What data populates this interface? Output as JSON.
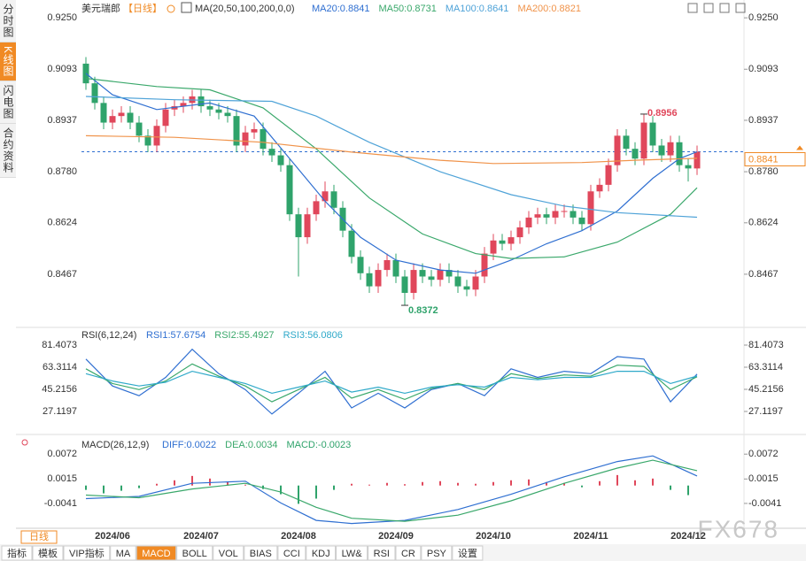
{
  "ui": {
    "sidebar": [
      "分时图",
      "K线图",
      "闪电图",
      "合约资料"
    ],
    "period_button": "日线",
    "toolbar": [
      "指标",
      "模板",
      "VIP指标",
      "MA",
      "MACD",
      "BOLL",
      "VOL",
      "BIAS",
      "CCI",
      "KDJ",
      "LW&",
      "RSI",
      "CR",
      "PSY",
      "设置"
    ],
    "watermark": "FX678"
  },
  "chart_data": [
    {
      "type": "candlestick",
      "title": "美元瑞郎",
      "subtitle": "【日线】",
      "legend_title": "MA(20,50,100,200,0,0)",
      "categories": [
        null,
        null,
        null,
        "2024/06",
        null,
        null,
        null,
        null,
        null,
        null,
        null,
        null,
        null,
        "2024/07",
        null,
        null,
        null,
        null,
        null,
        null,
        null,
        null,
        null,
        null,
        "2024/08",
        null,
        null,
        null,
        null,
        null,
        null,
        null,
        null,
        null,
        null,
        "2024/09",
        null,
        null,
        null,
        null,
        null,
        null,
        null,
        null,
        null,
        null,
        "2024/10",
        null,
        null,
        null,
        null,
        null,
        null,
        null,
        null,
        null,
        null,
        "2024/11",
        null,
        null,
        null,
        null,
        null,
        null,
        null,
        null,
        null,
        null,
        "2024/12",
        null
      ],
      "open": [
        0.911,
        0.905,
        0.899,
        0.893,
        0.895,
        0.896,
        0.893,
        0.889,
        0.886,
        0.892,
        0.897,
        0.898,
        0.899,
        0.901,
        0.898,
        0.897,
        0.896,
        0.895,
        0.886,
        0.89,
        0.891,
        0.885,
        0.883,
        0.88,
        0.865,
        0.858,
        0.865,
        0.869,
        0.872,
        0.867,
        0.86,
        0.852,
        0.847,
        0.843,
        0.848,
        0.851,
        0.846,
        0.841,
        0.848,
        0.846,
        0.845,
        0.848,
        0.846,
        0.843,
        0.842,
        0.846,
        0.853,
        0.857,
        0.856,
        0.858,
        0.861,
        0.864,
        0.865,
        0.864,
        0.866,
        0.866,
        0.864,
        0.862,
        0.872,
        0.874,
        0.88,
        0.889,
        0.885,
        0.882,
        0.893,
        0.886,
        0.883,
        0.887,
        0.88,
        0.879
      ],
      "high": [
        0.913,
        0.907,
        0.901,
        0.897,
        0.898,
        0.898,
        0.895,
        0.891,
        0.894,
        0.899,
        0.9,
        0.901,
        0.903,
        0.903,
        0.9,
        0.899,
        0.898,
        0.897,
        0.892,
        0.893,
        0.893,
        0.887,
        0.885,
        0.882,
        0.867,
        0.867,
        0.871,
        0.875,
        0.874,
        0.869,
        0.862,
        0.854,
        0.849,
        0.85,
        0.853,
        0.853,
        0.848,
        0.85,
        0.85,
        0.848,
        0.85,
        0.85,
        0.848,
        0.845,
        0.848,
        0.855,
        0.859,
        0.859,
        0.86,
        0.863,
        0.866,
        0.867,
        0.867,
        0.868,
        0.868,
        0.868,
        0.866,
        0.874,
        0.876,
        0.882,
        0.891,
        0.891,
        0.887,
        0.8956,
        0.895,
        0.888,
        0.889,
        0.889,
        0.882,
        0.886
      ],
      "low": [
        0.903,
        0.897,
        0.891,
        0.891,
        0.893,
        0.891,
        0.887,
        0.884,
        0.884,
        0.89,
        0.895,
        0.896,
        0.897,
        0.896,
        0.895,
        0.894,
        0.893,
        0.884,
        0.884,
        0.888,
        0.883,
        0.881,
        0.878,
        0.863,
        0.846,
        0.856,
        0.863,
        0.867,
        0.865,
        0.858,
        0.85,
        0.845,
        0.841,
        0.841,
        0.846,
        0.844,
        0.8372,
        0.839,
        0.844,
        0.843,
        0.843,
        0.844,
        0.841,
        0.84,
        0.84,
        0.844,
        0.851,
        0.854,
        0.854,
        0.856,
        0.859,
        0.862,
        0.862,
        0.862,
        0.864,
        0.862,
        0.86,
        0.86,
        0.87,
        0.872,
        0.878,
        0.883,
        0.88,
        0.88,
        0.884,
        0.881,
        0.881,
        0.878,
        0.875,
        0.877
      ],
      "close": [
        0.905,
        0.899,
        0.893,
        0.895,
        0.896,
        0.893,
        0.889,
        0.886,
        0.892,
        0.897,
        0.898,
        0.899,
        0.901,
        0.898,
        0.897,
        0.896,
        0.895,
        0.886,
        0.89,
        0.891,
        0.885,
        0.883,
        0.88,
        0.865,
        0.858,
        0.865,
        0.869,
        0.872,
        0.867,
        0.86,
        0.852,
        0.847,
        0.843,
        0.848,
        0.851,
        0.846,
        0.841,
        0.848,
        0.846,
        0.845,
        0.848,
        0.846,
        0.843,
        0.842,
        0.846,
        0.853,
        0.857,
        0.856,
        0.858,
        0.861,
        0.864,
        0.865,
        0.864,
        0.866,
        0.866,
        0.864,
        0.862,
        0.872,
        0.874,
        0.88,
        0.889,
        0.885,
        0.882,
        0.893,
        0.886,
        0.883,
        0.887,
        0.88,
        0.879,
        0.8841
      ],
      "up_color": "#e0475b",
      "down_color": "#2fa36b",
      "series": [
        {
          "name": "MA20:0.8841",
          "color": "#2f6fd1",
          "x": [
            0,
            3,
            8,
            14,
            19,
            23,
            27,
            31,
            35,
            40,
            44,
            48,
            52,
            56,
            60,
            64,
            67,
            69
          ],
          "values": [
            0.908,
            0.9015,
            0.897,
            0.899,
            0.895,
            0.882,
            0.869,
            0.858,
            0.851,
            0.848,
            0.847,
            0.851,
            0.856,
            0.86,
            0.866,
            0.876,
            0.882,
            0.8841
          ]
        },
        {
          "name": "MA50:0.8731",
          "color": "#3aa86b",
          "x": [
            0,
            8,
            14,
            20,
            26,
            32,
            38,
            44,
            48,
            54,
            60,
            66,
            69
          ],
          "values": [
            0.9065,
            0.904,
            0.903,
            0.8975,
            0.885,
            0.87,
            0.859,
            0.853,
            0.8515,
            0.852,
            0.8565,
            0.865,
            0.8731
          ]
        },
        {
          "name": "MA100:0.8641",
          "color": "#4fa3d8",
          "x": [
            0,
            10,
            21,
            26,
            32,
            40,
            48,
            54,
            60,
            69
          ],
          "values": [
            0.901,
            0.9,
            0.8995,
            0.895,
            0.887,
            0.878,
            0.871,
            0.8675,
            0.8655,
            0.8641
          ]
        },
        {
          "name": "MA200:0.8821",
          "color": "#f0934a",
          "x": [
            0,
            10,
            20,
            30,
            40,
            46,
            56,
            62,
            69
          ],
          "values": [
            0.889,
            0.8885,
            0.887,
            0.884,
            0.8815,
            0.8805,
            0.8808,
            0.8815,
            0.8821
          ]
        }
      ],
      "xlim": [
        -0.5,
        69.5
      ],
      "ylim": [
        0.831,
        0.9299
      ],
      "yticks": [
        {
          "value": 0.925,
          "label": "0.9250"
        },
        0.9093,
        0.8937,
        {
          "value": 0.878,
          "label": "0.8780"
        },
        0.8624,
        0.8467
      ],
      "last_price": 0.8841,
      "last_price_color": "#f08a24",
      "annotations": [
        {
          "x": 63,
          "value": 0.8956,
          "color": "#e0475b"
        },
        {
          "x": 36,
          "value": 0.8372,
          "color": "#2fa36b"
        }
      ]
    },
    {
      "type": "line",
      "title": "RSI(6,12,24)",
      "xlim": [
        -0.5,
        69.5
      ],
      "ylim": [
        10.47,
        94.44
      ],
      "yticks": [
        81.4073,
        63.3114,
        45.2156,
        27.1197
      ],
      "series": [
        {
          "name": "RSI1:57.6754",
          "color": "#2f6fd1",
          "x": [
            0,
            3,
            6,
            9,
            12,
            15,
            18,
            21,
            24,
            27,
            30,
            33,
            36,
            39,
            42,
            45,
            48,
            51,
            54,
            57,
            60,
            63,
            66,
            69
          ],
          "values": [
            70,
            48,
            40,
            55,
            78,
            58,
            45,
            25,
            42,
            60,
            30,
            42,
            30,
            45,
            50,
            40,
            62,
            55,
            60,
            58,
            72,
            70,
            35,
            57.6754
          ]
        },
        {
          "name": "RSI2:55.4927",
          "color": "#3aa86b",
          "x": [
            0,
            3,
            6,
            9,
            12,
            15,
            18,
            21,
            24,
            27,
            30,
            33,
            36,
            39,
            42,
            45,
            48,
            51,
            54,
            57,
            60,
            63,
            66,
            69
          ],
          "values": [
            62,
            50,
            45,
            52,
            66,
            56,
            48,
            35,
            45,
            55,
            38,
            45,
            37,
            46,
            50,
            45,
            58,
            54,
            57,
            56,
            65,
            64,
            45,
            55.4927
          ]
        },
        {
          "name": "RSI3:56.0806",
          "color": "#2fa9c9",
          "x": [
            0,
            3,
            6,
            9,
            12,
            15,
            18,
            21,
            24,
            27,
            30,
            33,
            36,
            39,
            42,
            45,
            48,
            51,
            54,
            57,
            60,
            63,
            66,
            69
          ],
          "values": [
            58,
            52,
            48,
            51,
            60,
            55,
            50,
            42,
            47,
            52,
            43,
            47,
            42,
            47,
            49,
            47,
            55,
            53,
            55,
            55,
            60,
            60,
            50,
            56.0806
          ]
        }
      ]
    },
    {
      "type": "macd",
      "title": "MACD(26,12,9)",
      "xlim": [
        -0.5,
        69.5
      ],
      "ylim": [
        -0.0098,
        0.0111
      ],
      "yticks": [
        0.0072,
        0.0015,
        -0.0041
      ],
      "up_color": "#e0475b",
      "down_color": "#2fa36b",
      "series": [
        {
          "name": "DIFF:0.0022",
          "color": "#2f6fd1",
          "x": [
            0,
            6,
            12,
            18,
            22,
            26,
            30,
            36,
            42,
            48,
            54,
            60,
            64,
            69
          ],
          "values": [
            -0.003,
            -0.0025,
            0.0005,
            0.001,
            -0.004,
            -0.008,
            -0.0087,
            -0.008,
            -0.0055,
            -0.002,
            0.002,
            0.0055,
            0.0068,
            0.0022
          ]
        },
        {
          "name": "DEA:0.0034",
          "color": "#3aa86b",
          "x": [
            0,
            6,
            12,
            18,
            22,
            26,
            30,
            36,
            42,
            48,
            54,
            60,
            64,
            69
          ],
          "values": [
            -0.0022,
            -0.0028,
            -0.0008,
            0.0005,
            -0.0015,
            -0.005,
            -0.0075,
            -0.0082,
            -0.0068,
            -0.0035,
            0.0005,
            0.004,
            0.0058,
            0.0034
          ]
        }
      ],
      "histogram": {
        "name": "MACD:-0.0023",
        "color": "#2fa36b",
        "x": [
          0,
          2,
          4,
          6,
          8,
          10,
          12,
          14,
          16,
          18,
          20,
          22,
          24,
          26,
          28,
          30,
          32,
          34,
          36,
          38,
          40,
          42,
          44,
          46,
          48,
          50,
          52,
          54,
          56,
          58,
          60,
          62,
          64,
          66,
          68
        ],
        "values": [
          -0.001,
          -0.0018,
          -0.0012,
          -0.0006,
          0.0004,
          0.0012,
          0.0022,
          0.0016,
          0.0008,
          0.0002,
          -0.0008,
          -0.002,
          -0.0042,
          -0.003,
          -0.001,
          0.0004,
          0.0002,
          0.0006,
          0.0003,
          0.0008,
          0.001,
          0.0006,
          0.0004,
          0.0008,
          0.0012,
          0.0014,
          0.0008,
          0.0006,
          -0.0004,
          0.001,
          0.0024,
          0.0012,
          0.0016,
          -0.001,
          -0.0022
        ]
      }
    }
  ]
}
